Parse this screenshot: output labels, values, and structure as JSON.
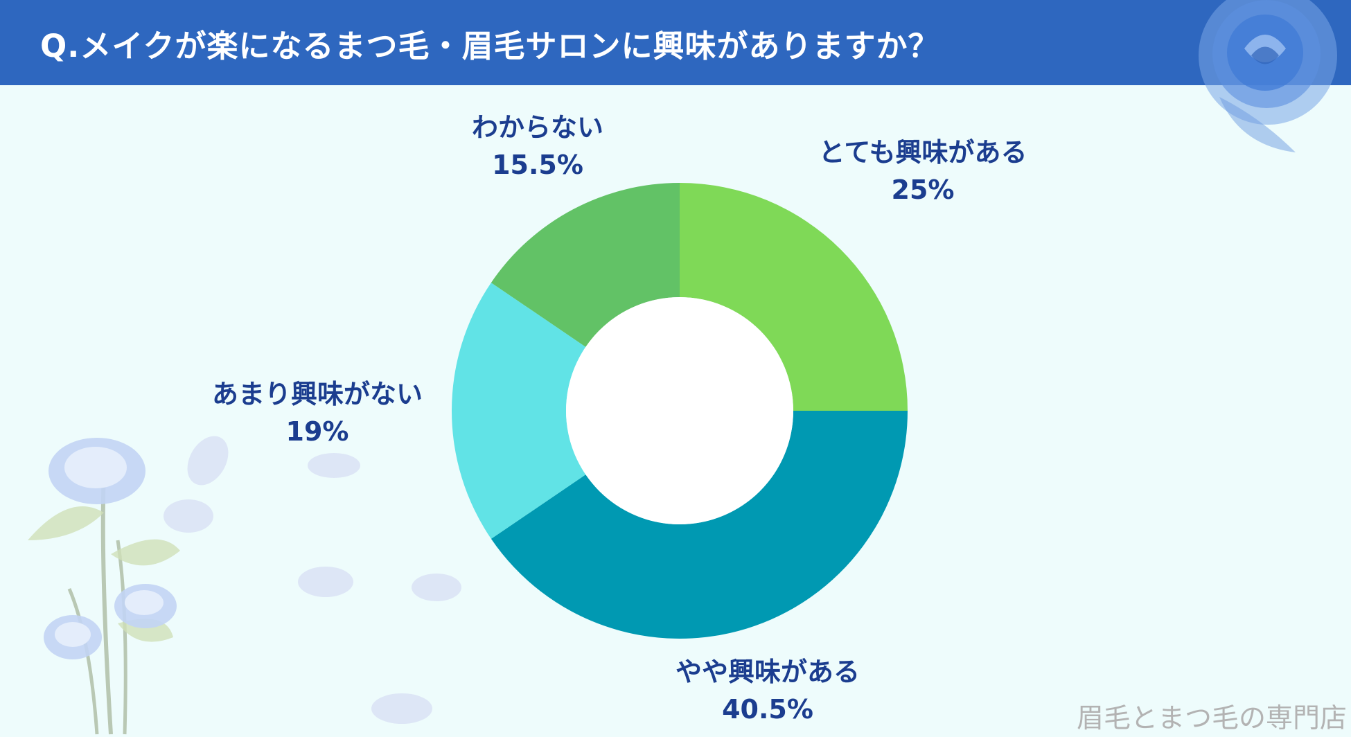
{
  "title": "Q.メイクが楽になるまつ毛・眉毛サロンに興味がありますか？",
  "watermark": "眉毛とまつ毛の専門店",
  "colors": {
    "header": "#2e67bf",
    "background": "#eefcfc",
    "label": "#1b3d8f"
  },
  "chart_data": {
    "type": "pie",
    "style": "donut",
    "title": "Q.メイクが楽になるまつ毛・眉毛サロンに興味がありますか？",
    "slices": [
      {
        "label": "とても興味がある",
        "value": 25,
        "display": "25%",
        "color": "#7fd957"
      },
      {
        "label": "やや興味がある",
        "value": 40.5,
        "display": "40.5%",
        "color": "#0099b2"
      },
      {
        "label": "あまり興味がない",
        "value": 19,
        "display": "19%",
        "color": "#61e3e6"
      },
      {
        "label": "わからない",
        "value": 15.5,
        "display": "15.5%",
        "color": "#62c266"
      }
    ],
    "start_angle": "top, clockwise",
    "legend": "none"
  }
}
